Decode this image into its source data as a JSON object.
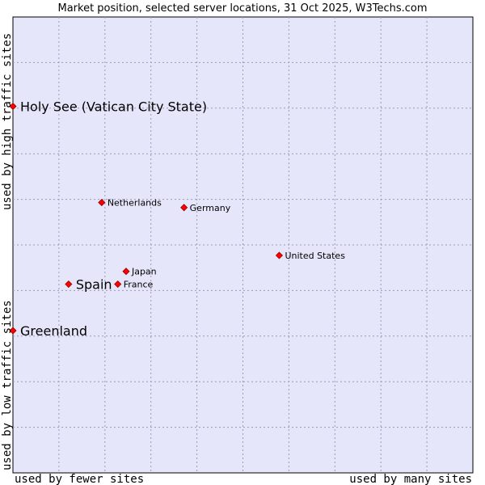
{
  "chart_data": {
    "type": "scatter",
    "title": "Market position, selected server locations, 31 Oct 2025, W3Techs.com",
    "xlabel_left": "used by fewer sites",
    "xlabel_right": "used by many sites",
    "ylabel_bottom": "used by low traffic sites",
    "ylabel_top": "used by high traffic sites",
    "xlim": [
      0,
      10
    ],
    "ylim": [
      0,
      10
    ],
    "grid": true,
    "background": "#e6e6fa",
    "point_color": "#ff0000",
    "points": [
      {
        "label": "Holy See (Vatican City State)",
        "x": 0.0,
        "y": 8.04,
        "emphasis": true
      },
      {
        "label": "Netherlands",
        "x": 1.93,
        "y": 5.93,
        "emphasis": false
      },
      {
        "label": "Germany",
        "x": 3.72,
        "y": 5.82,
        "emphasis": false
      },
      {
        "label": "United States",
        "x": 5.79,
        "y": 4.77,
        "emphasis": false
      },
      {
        "label": "Japan",
        "x": 2.46,
        "y": 4.42,
        "emphasis": false
      },
      {
        "label": "Spain",
        "x": 1.21,
        "y": 4.14,
        "emphasis": true
      },
      {
        "label": "France",
        "x": 2.28,
        "y": 4.14,
        "emphasis": false
      },
      {
        "label": "Greenland",
        "x": 0.0,
        "y": 3.12,
        "emphasis": true
      }
    ]
  }
}
